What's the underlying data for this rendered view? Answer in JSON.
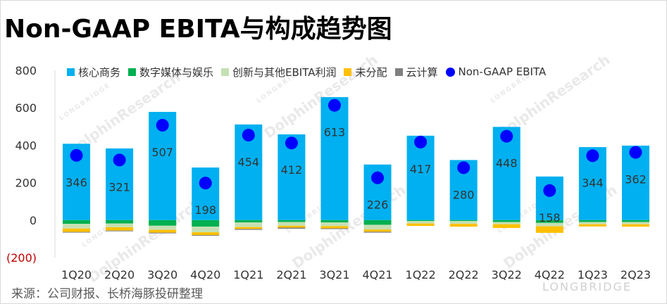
{
  "title": "Non-GAAP EBITA与构成趋势图",
  "source": "来源：公司财报、长桥海豚投研整理",
  "watermark": {
    "brand_small": "LONGBRIDGE",
    "brand_large": "DolphinResearch",
    "corner": "LONGBRIDGE"
  },
  "colors": {
    "core": "#00b0f0",
    "digital": "#00b050",
    "innovation": "#c5e0b4",
    "unallocated": "#ffc000",
    "cloud": "#7f7f7f",
    "ebita": "#0000ff",
    "neg_label": "#c00000"
  },
  "chart_data": {
    "type": "bar",
    "stacked": true,
    "categories": [
      "1Q20",
      "2Q20",
      "3Q20",
      "4Q20",
      "1Q21",
      "2Q21",
      "3Q21",
      "4Q21",
      "1Q22",
      "2Q22",
      "3Q22",
      "4Q22",
      "1Q23",
      "2Q23"
    ],
    "ylim": [
      -200,
      800
    ],
    "yticks": [
      800,
      600,
      400,
      200,
      0,
      -200
    ],
    "ytick_labels": [
      "800",
      "600",
      "400",
      "200",
      "0",
      "(200)"
    ],
    "series": [
      {
        "name": "核心商务",
        "key": "core",
        "values": [
          408,
          383,
          578,
          281,
          511,
          458,
          657,
          297,
          451,
          321,
          498,
          233,
          390,
          398
        ]
      },
      {
        "name": "数字媒体与娱乐",
        "key": "digital",
        "values": [
          -20,
          -18,
          -30,
          -35,
          -12,
          -10,
          -12,
          -25,
          -5,
          -5,
          -10,
          -15,
          -10,
          -10
        ]
      },
      {
        "name": "创新与其他EBITA利润",
        "key": "innovation",
        "values": [
          -25,
          -20,
          -22,
          -30,
          -25,
          -20,
          -20,
          -25,
          -13,
          -15,
          -12,
          -18,
          -12,
          -12
        ]
      },
      {
        "name": "未分配",
        "key": "unallocated",
        "values": [
          -18,
          -18,
          -15,
          -15,
          -10,
          -10,
          -12,
          -12,
          -13,
          -15,
          -20,
          -35,
          -12,
          -13
        ]
      },
      {
        "name": "云计算",
        "key": "cloud",
        "values": [
          -3,
          -3,
          -3,
          -3,
          -5,
          -6,
          -4,
          -5,
          0,
          0,
          0,
          0,
          0,
          0
        ]
      }
    ],
    "line_series": {
      "name": "Non-GAAP EBITA",
      "key": "ebita",
      "values": [
        346,
        321,
        507,
        198,
        454,
        412,
        613,
        226,
        417,
        280,
        448,
        158,
        344,
        362
      ],
      "labels": [
        "346",
        "321",
        "507",
        "198",
        "454",
        "412",
        "613",
        "226",
        "417",
        "280",
        "448",
        "158",
        "344",
        "362"
      ]
    },
    "grid": false,
    "legend_position": "top"
  }
}
